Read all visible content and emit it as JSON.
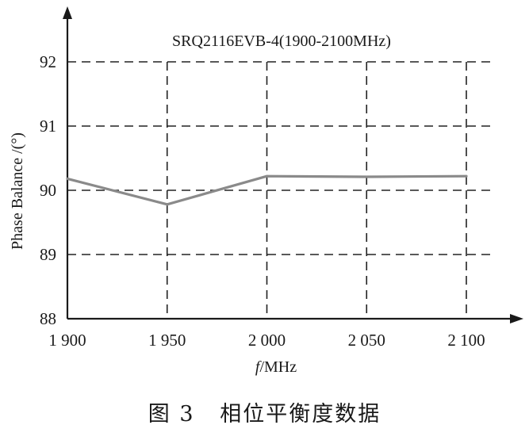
{
  "chart_data": {
    "type": "line",
    "title": "SRQ2116EVB-4(1900-2100MHz)",
    "xlabel_italic": "f",
    "xlabel_rest": "/MHz",
    "ylabel": "Phase Balance /(°)",
    "x_ticks": [
      1900,
      1950,
      2000,
      2050,
      2100
    ],
    "x_tick_labels": [
      "1 900",
      "1 950",
      "2 000",
      "2 050",
      "2 100"
    ],
    "y_ticks": [
      88,
      89,
      90,
      91,
      92
    ],
    "y_tick_labels": [
      "88",
      "89",
      "90",
      "91",
      "92"
    ],
    "xlim": [
      1900,
      2100
    ],
    "ylim": [
      88,
      92
    ],
    "grid": true,
    "series": [
      {
        "x": [
          1900,
          1950,
          2000,
          2050,
          2100
        ],
        "values": [
          90.18,
          89.78,
          90.22,
          90.21,
          90.22
        ],
        "color": "#8a8a8a"
      }
    ]
  },
  "caption": "图 3   相位平衡度数据"
}
